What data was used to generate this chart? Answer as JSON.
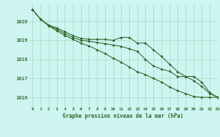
{
  "title": "Graphe pression niveau de la mer (hPa)",
  "background_color": "#cef5f0",
  "grid_color": "#aaddcc",
  "line_color": "#2d6a2d",
  "xlim": [
    -0.5,
    23
  ],
  "ylim": [
    1015.5,
    1020.9
  ],
  "yticks": [
    1016,
    1017,
    1018,
    1019,
    1020
  ],
  "xticks": [
    0,
    1,
    2,
    3,
    4,
    5,
    6,
    7,
    8,
    9,
    10,
    11,
    12,
    13,
    14,
    15,
    16,
    17,
    18,
    19,
    20,
    21,
    22,
    23
  ],
  "series1": [
    1020.6,
    1020.1,
    1019.8,
    1019.65,
    1019.45,
    1019.25,
    1019.1,
    1019.05,
    1019.05,
    1019.05,
    1019.0,
    1019.15,
    1019.15,
    1018.85,
    1018.85,
    1018.5,
    1018.15,
    1017.75,
    1017.35,
    1017.1,
    1017.1,
    1016.8,
    1016.25,
    1016.0
  ],
  "series2": [
    1020.6,
    1020.1,
    1019.75,
    1019.5,
    1019.25,
    1019.05,
    1018.85,
    1018.7,
    1018.5,
    1018.3,
    1018.05,
    1017.85,
    1017.6,
    1017.35,
    1017.2,
    1017.0,
    1016.8,
    1016.55,
    1016.35,
    1016.2,
    1016.05,
    1016.0,
    1016.0,
    1016.0
  ],
  "series3": [
    1020.6,
    1020.1,
    1019.78,
    1019.58,
    1019.35,
    1019.15,
    1019.0,
    1018.95,
    1018.88,
    1018.82,
    1018.75,
    1018.68,
    1018.55,
    1018.42,
    1018.0,
    1017.65,
    1017.48,
    1017.38,
    1017.1,
    1017.1,
    1016.88,
    1016.58,
    1016.2,
    1016.0
  ]
}
